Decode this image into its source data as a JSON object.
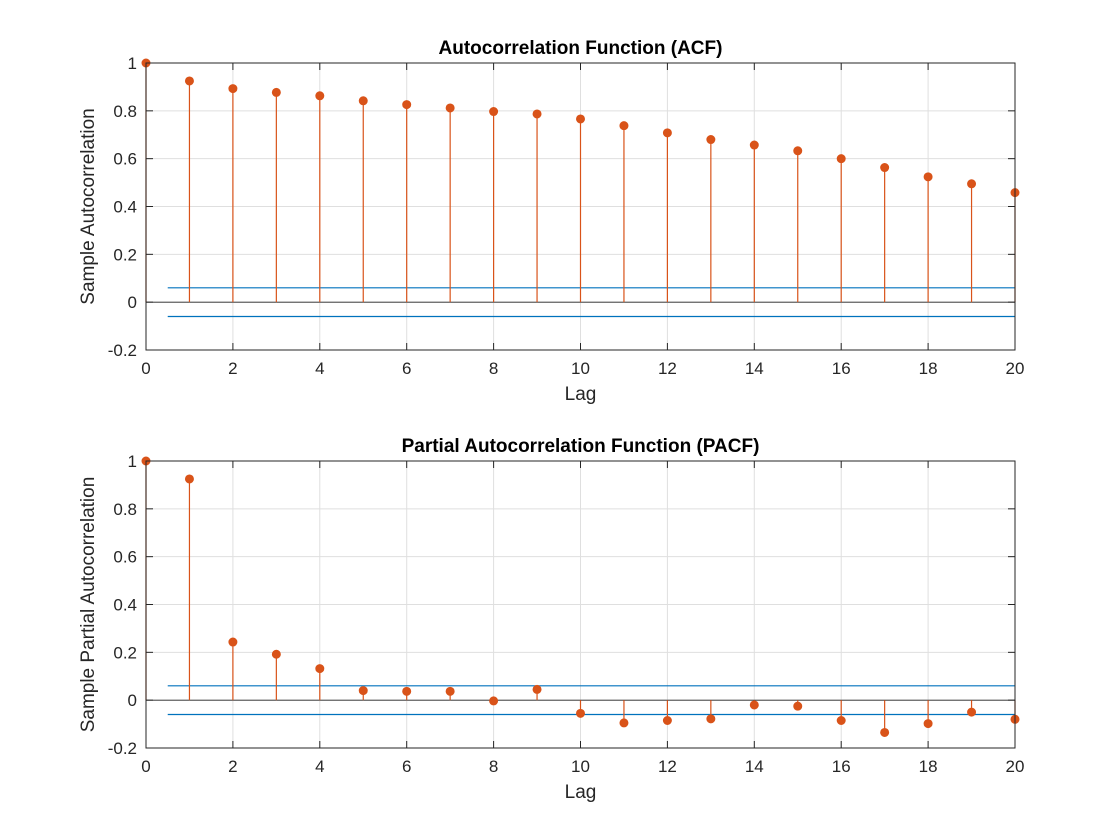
{
  "chart_data": [
    {
      "type": "stem",
      "title": "Autocorrelation Function (ACF)",
      "xlabel": "Lag",
      "ylabel": "Sample Autocorrelation",
      "xlim": [
        0,
        20
      ],
      "ylim": [
        -0.2,
        1
      ],
      "xticks": [
        "0",
        "2",
        "4",
        "6",
        "8",
        "10",
        "12",
        "14",
        "16",
        "18",
        "20"
      ],
      "yticks": [
        "-0.2",
        "0",
        "0.2",
        "0.4",
        "0.6",
        "0.8",
        "1"
      ],
      "grid": true,
      "x": [
        0,
        1,
        2,
        3,
        4,
        5,
        6,
        7,
        8,
        9,
        10,
        11,
        12,
        13,
        14,
        15,
        16,
        17,
        18,
        19,
        20
      ],
      "values": [
        1.0,
        0.925,
        0.893,
        0.877,
        0.863,
        0.842,
        0.826,
        0.812,
        0.797,
        0.787,
        0.766,
        0.738,
        0.708,
        0.68,
        0.657,
        0.633,
        0.6,
        0.563,
        0.524,
        0.495,
        0.458
      ],
      "confidence_bounds": [
        0.06,
        -0.06
      ],
      "stem_color": "#D95319",
      "bound_color": "#0072BD"
    },
    {
      "type": "stem",
      "title": "Partial Autocorrelation Function (PACF)",
      "xlabel": "Lag",
      "ylabel": "Sample Partial Autocorrelation",
      "xlim": [
        0,
        20
      ],
      "ylim": [
        -0.2,
        1
      ],
      "xticks": [
        "0",
        "2",
        "4",
        "6",
        "8",
        "10",
        "12",
        "14",
        "16",
        "18",
        "20"
      ],
      "yticks": [
        "-0.2",
        "0",
        "0.2",
        "0.4",
        "0.6",
        "0.8",
        "1"
      ],
      "grid": true,
      "x": [
        0,
        1,
        2,
        3,
        4,
        5,
        6,
        7,
        8,
        9,
        10,
        11,
        12,
        13,
        14,
        15,
        16,
        17,
        18,
        19,
        20
      ],
      "values": [
        1.0,
        0.925,
        0.243,
        0.192,
        0.132,
        0.04,
        0.037,
        0.037,
        -0.003,
        0.045,
        -0.055,
        -0.095,
        -0.085,
        -0.078,
        -0.02,
        -0.025,
        -0.085,
        -0.135,
        -0.098,
        -0.05,
        -0.08
      ],
      "confidence_bounds": [
        0.06,
        -0.06
      ],
      "stem_color": "#D95319",
      "bound_color": "#0072BD"
    }
  ]
}
